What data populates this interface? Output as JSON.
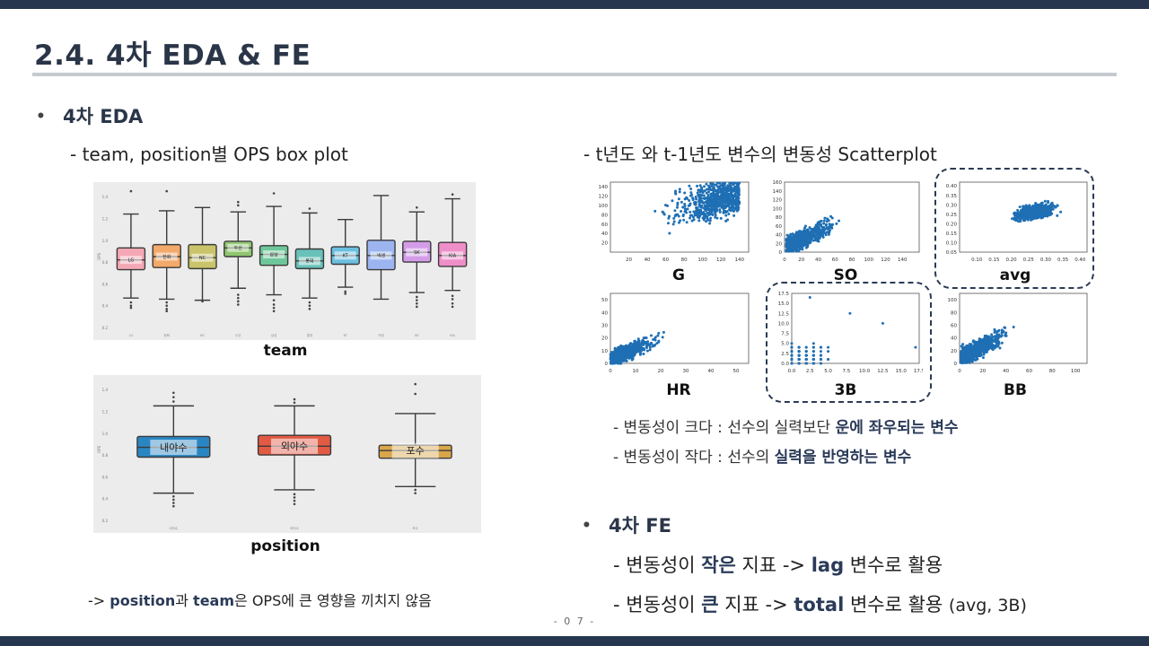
{
  "header": {
    "title": "2.4. 4차 EDA & FE",
    "page_number": "- 0 7 -"
  },
  "eda": {
    "bullet": "4차 EDA",
    "boxplot_subtitle": "- team, position별 OPS box plot",
    "scatter_subtitle": "- t년도 와 t-1년도 변수의 변동성 Scatterplot",
    "note_big_prefix": "- 변동성이 크다 : 선수의 실력보단 ",
    "note_big_bold": "운에 좌우되는 변수",
    "note_small_prefix": "- 변동성이 작다 : 선수의 ",
    "note_small_bold": "실력을 반영하는 변수",
    "conclusion_prefix": "-> ",
    "conclusion_bold1": "position",
    "conclusion_mid": "과 ",
    "conclusion_bold2": "team",
    "conclusion_suffix": "은 OPS에 큰 영향을 끼치지 않음"
  },
  "fe": {
    "bullet": "4차 FE",
    "line1_a": "- 변동성이 ",
    "line1_b": "작은",
    "line1_c": " 지표 -> ",
    "line1_d": "lag",
    "line1_e": " 변수로 활용",
    "line2_a": "- 변동성이 ",
    "line2_b": "큰",
    "line2_c": " 지표 -> ",
    "line2_d": "total",
    "line2_e": " 변수로 활용 ",
    "line2_f": "(avg, 3B)"
  },
  "chart_data": [
    {
      "type": "box",
      "caption": "team",
      "ylabel": "OPS",
      "ylim": [
        0.2,
        1.5
      ],
      "categories": [
        "LG",
        "한화",
        "NC",
        "두산",
        "삼성",
        "롯데",
        "KT",
        "넥센",
        "SK",
        "KIA"
      ],
      "colors": [
        "#f4a7b4",
        "#f2a96a",
        "#c9c46a",
        "#8fc66f",
        "#6ec79a",
        "#69c2b9",
        "#6cbfe0",
        "#9cb5f0",
        "#d39ce8",
        "#ef8fc9"
      ],
      "stats": [
        {
          "min": 0.47,
          "q1": 0.73,
          "median": 0.82,
          "q3": 0.93,
          "max": 1.24,
          "outliers": [
            0.43,
            0.4,
            0.38,
            1.45
          ]
        },
        {
          "min": 0.46,
          "q1": 0.75,
          "median": 0.85,
          "q3": 0.96,
          "max": 1.27,
          "outliers": [
            0.43,
            0.4,
            0.37,
            0.35,
            1.45
          ]
        },
        {
          "min": 0.45,
          "q1": 0.74,
          "median": 0.84,
          "q3": 0.96,
          "max": 1.3,
          "outliers": [
            0.44
          ]
        },
        {
          "min": 0.56,
          "q1": 0.85,
          "median": 0.93,
          "q3": 0.99,
          "max": 1.26,
          "outliers": [
            0.5,
            0.47,
            0.44,
            0.41,
            1.32,
            1.35
          ]
        },
        {
          "min": 0.5,
          "q1": 0.77,
          "median": 0.87,
          "q3": 0.95,
          "max": 1.31,
          "outliers": [
            0.45,
            0.41,
            0.38,
            0.35,
            1.43
          ]
        },
        {
          "min": 0.47,
          "q1": 0.74,
          "median": 0.81,
          "q3": 0.92,
          "max": 1.25,
          "outliers": [
            0.43,
            0.4,
            0.37,
            1.29
          ]
        },
        {
          "min": 0.57,
          "q1": 0.78,
          "median": 0.86,
          "q3": 0.94,
          "max": 1.19,
          "outliers": [
            0.53,
            0.51
          ]
        },
        {
          "min": 0.46,
          "q1": 0.73,
          "median": 0.86,
          "q3": 1.0,
          "max": 1.41,
          "outliers": []
        },
        {
          "min": 0.52,
          "q1": 0.8,
          "median": 0.89,
          "q3": 0.99,
          "max": 1.26,
          "outliers": [
            0.48,
            0.45,
            0.42,
            0.39,
            1.3
          ]
        },
        {
          "min": 0.54,
          "q1": 0.76,
          "median": 0.86,
          "q3": 0.98,
          "max": 1.38,
          "outliers": [
            0.49,
            0.46,
            0.42,
            0.39,
            1.42
          ]
        }
      ]
    },
    {
      "type": "box",
      "caption": "position",
      "ylabel": "OPS",
      "ylim": [
        0.2,
        1.5
      ],
      "categories": [
        "내야수",
        "외야수",
        "포수"
      ],
      "colors": [
        "#2a86c3",
        "#e25a44",
        "#d9a64a"
      ],
      "stats": [
        {
          "min": 0.45,
          "q1": 0.78,
          "median": 0.87,
          "q3": 0.97,
          "max": 1.25,
          "outliers": [
            0.42,
            0.39,
            0.36,
            0.33,
            1.29,
            1.33,
            1.37
          ]
        },
        {
          "min": 0.48,
          "q1": 0.8,
          "median": 0.88,
          "q3": 0.98,
          "max": 1.25,
          "outliers": [
            0.44,
            0.41,
            0.38,
            0.35,
            1.28,
            1.31
          ]
        },
        {
          "min": 0.51,
          "q1": 0.77,
          "median": 0.84,
          "q3": 0.89,
          "max": 1.18,
          "outliers": [
            0.48,
            0.45,
            1.36,
            1.45
          ]
        }
      ]
    },
    {
      "type": "scatter",
      "caption": "G",
      "xlim": [
        0,
        150
      ],
      "ylim": [
        0,
        150
      ],
      "xticks": [
        20,
        40,
        60,
        80,
        100,
        120,
        140
      ],
      "yticks": [
        20,
        40,
        60,
        80,
        100,
        120,
        140
      ],
      "trend": "weak positive, dense in upper-right"
    },
    {
      "type": "scatter",
      "caption": "SO",
      "xlim": [
        0,
        160
      ],
      "ylim": [
        0,
        160
      ],
      "xticks": [
        0,
        20,
        40,
        60,
        80,
        100,
        120,
        140
      ],
      "yticks": [
        0,
        20,
        40,
        60,
        80,
        100,
        120,
        140,
        160
      ],
      "trend": "positive"
    },
    {
      "type": "scatter",
      "caption": "avg",
      "xlim": [
        0.05,
        0.42
      ],
      "ylim": [
        0.05,
        0.42
      ],
      "xticks": [
        0.1,
        0.15,
        0.2,
        0.25,
        0.3,
        0.35,
        0.4
      ],
      "yticks": [
        0.05,
        0.1,
        0.15,
        0.2,
        0.25,
        0.3,
        0.35,
        0.4
      ],
      "trend": "moderate positive cluster"
    },
    {
      "type": "scatter",
      "caption": "HR",
      "xlim": [
        0,
        55
      ],
      "ylim": [
        0,
        55
      ],
      "xticks": [
        0,
        10,
        20,
        30,
        40,
        50
      ],
      "yticks": [
        0,
        10,
        20,
        30,
        40,
        50
      ],
      "trend": "positive"
    },
    {
      "type": "scatter",
      "caption": "3B",
      "xlim": [
        0,
        17.5
      ],
      "ylim": [
        0,
        17.5
      ],
      "xticks": [
        0.0,
        2.5,
        5.0,
        7.5,
        10.0,
        12.5,
        15.0,
        17.5
      ],
      "yticks": [
        0.0,
        2.5,
        5.0,
        7.5,
        10.0,
        12.5,
        15.0,
        17.5
      ],
      "trend": "discrete grid, weak"
    },
    {
      "type": "scatter",
      "caption": "BB",
      "xlim": [
        0,
        110
      ],
      "ylim": [
        0,
        110
      ],
      "xticks": [
        0,
        20,
        40,
        60,
        80,
        100
      ],
      "yticks": [
        0,
        20,
        40,
        60,
        80,
        100
      ],
      "trend": "strong positive"
    }
  ]
}
